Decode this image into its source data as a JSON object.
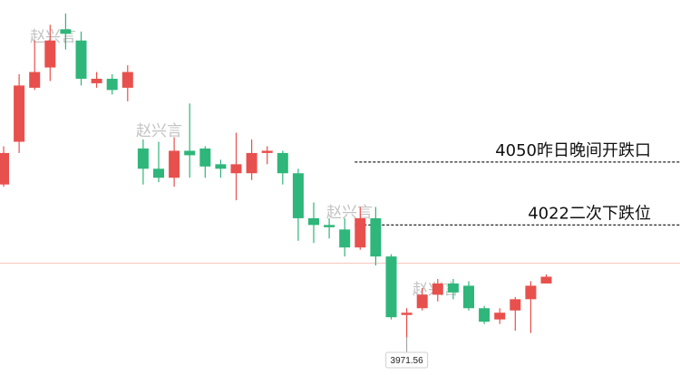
{
  "chart_data": {
    "type": "candlestick",
    "colors": {
      "up": "#e8504d",
      "down": "#2fb67a",
      "ref_line": "#f4c2bd",
      "level_line": "#222222"
    },
    "candles": [
      {
        "open": 4040,
        "close": 4054,
        "high": 4057,
        "low": 4039
      },
      {
        "open": 4059,
        "close": 4084,
        "high": 4089,
        "low": 4054
      },
      {
        "open": 4083,
        "close": 4090,
        "high": 4104,
        "low": 4082
      },
      {
        "open": 4092,
        "close": 4104,
        "high": 4111,
        "low": 4086
      },
      {
        "open": 4109,
        "close": 4107,
        "high": 4116,
        "low": 4100
      },
      {
        "open": 4104,
        "close": 4087,
        "high": 4108,
        "low": 4084
      },
      {
        "open": 4085,
        "close": 4087,
        "high": 4090,
        "low": 4083
      },
      {
        "open": 4087,
        "close": 4082,
        "high": 4089,
        "low": 4080
      },
      {
        "open": 4083,
        "close": 4090,
        "high": 4093,
        "low": 4077
      },
      {
        "open": 4056,
        "close": 4047,
        "high": 4060,
        "low": 4040
      },
      {
        "open": 4047,
        "close": 4043,
        "high": 4059,
        "low": 4041
      },
      {
        "open": 4043,
        "close": 4055,
        "high": 4061,
        "low": 4039
      },
      {
        "open": 4055,
        "close": 4053,
        "high": 4076,
        "low": 4043
      },
      {
        "open": 4056,
        "close": 4048,
        "high": 4057,
        "low": 4043
      },
      {
        "open": 4049,
        "close": 4047,
        "high": 4051,
        "low": 4043
      },
      {
        "open": 4045,
        "close": 4049,
        "high": 4063,
        "low": 4033
      },
      {
        "open": 4045,
        "close": 4054,
        "high": 4060,
        "low": 4042
      },
      {
        "open": 4054,
        "close": 4055,
        "high": 4057,
        "low": 4049
      },
      {
        "open": 4054,
        "close": 4045,
        "high": 4055,
        "low": 4040
      },
      {
        "open": 4045,
        "close": 4025,
        "high": 4047,
        "low": 4015
      },
      {
        "open": 4025,
        "close": 4022,
        "high": 4032,
        "low": 4014
      },
      {
        "open": 4022,
        "close": 4021,
        "high": 4025,
        "low": 4016
      },
      {
        "open": 4020,
        "close": 4012,
        "high": 4025,
        "low": 4008
      },
      {
        "open": 4012,
        "close": 4025,
        "high": 4030,
        "low": 4011
      },
      {
        "open": 4025,
        "close": 4008,
        "high": 4030,
        "low": 4004
      },
      {
        "open": 4008,
        "close": 3981,
        "high": 4009,
        "low": 3980
      },
      {
        "open": 3982,
        "close": 3983,
        "high": 3985,
        "low": 3972
      },
      {
        "open": 3985,
        "close": 3991,
        "high": 3994,
        "low": 3984
      },
      {
        "open": 3991,
        "close": 3996,
        "high": 3998,
        "low": 3988
      },
      {
        "open": 3996,
        "close": 3992,
        "high": 3998,
        "low": 3989
      },
      {
        "open": 3995,
        "close": 3985,
        "high": 3997,
        "low": 3984
      },
      {
        "open": 3985,
        "close": 3979,
        "high": 3986,
        "low": 3978
      },
      {
        "open": 3980,
        "close": 3983,
        "high": 3985,
        "low": 3978
      },
      {
        "open": 3984,
        "close": 3989,
        "high": 3990,
        "low": 3975
      },
      {
        "open": 3989,
        "close": 3995,
        "high": 3997,
        "low": 3974
      },
      {
        "open": 3996,
        "close": 3999,
        "high": 4000,
        "low": 3996
      }
    ],
    "y_range": [
      3969,
      4120
    ],
    "reference_line": 4005,
    "levels": [
      {
        "value": 4050,
        "label": "4050昨日晚间开跌口"
      },
      {
        "value": 4022,
        "label": "4022二次下跌位"
      }
    ],
    "low_marker": {
      "label": "3971.56",
      "candle_index": 26
    },
    "watermark": "赵兴言"
  }
}
